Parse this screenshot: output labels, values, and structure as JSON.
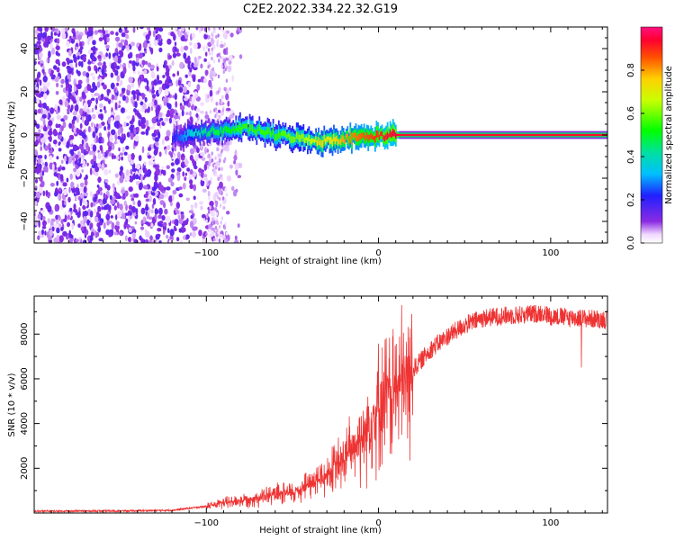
{
  "figure": {
    "title": "C2E2.2022.334.22.32.G19"
  },
  "chart_data": [
    {
      "type": "heatmap",
      "xlabel": "Height of straight line (km)",
      "ylabel": "Frequency (Hz)",
      "xlim": [
        -200,
        133
      ],
      "ylim": [
        -50,
        50
      ],
      "xticks": [
        -100,
        0,
        100
      ],
      "yticks": [
        -40,
        -20,
        0,
        20,
        40
      ],
      "grid": false,
      "colorbar": {
        "label": "Normalized spectral amplitude",
        "range": [
          0.0,
          1.0
        ],
        "ticks": [
          0.0,
          0.2,
          0.4,
          0.6,
          0.8
        ],
        "tick_labels": [
          "0.0",
          "0.2",
          "0.4",
          "0.6",
          "0.8"
        ]
      },
      "ridge": {
        "description": "spectral peak frequency vs height",
        "x": [
          -120,
          -110,
          -100,
          -90,
          -80,
          -70,
          -60,
          -50,
          -40,
          -35,
          -30,
          -20,
          -10,
          0,
          10,
          20,
          50,
          100,
          133
        ],
        "y": [
          -1.0,
          0.0,
          1.5,
          2.0,
          3.0,
          2.0,
          0.0,
          -1.0,
          -2.0,
          -3.0,
          -2.5,
          -1.5,
          -1.0,
          -0.5,
          0.0,
          0.0,
          0.0,
          0.0,
          0.0
        ],
        "amplitude": [
          0.2,
          0.35,
          0.45,
          0.5,
          0.55,
          0.55,
          0.55,
          0.6,
          0.65,
          0.75,
          0.7,
          0.8,
          0.85,
          0.9,
          0.95,
          0.95,
          0.95,
          0.95,
          0.95
        ]
      },
      "noise_region": {
        "x_range": [
          -200,
          -90
        ],
        "amplitude": [
          0.05,
          0.15
        ]
      }
    },
    {
      "type": "line",
      "xlabel": "Height of straight line (km)",
      "ylabel": "SNR (10 * v/v)",
      "xlim": [
        -200,
        133
      ],
      "ylim": [
        0,
        9700
      ],
      "xticks": [
        -100,
        0,
        100
      ],
      "yticks": [
        2000,
        4000,
        6000,
        8000
      ],
      "grid": false,
      "series": [
        {
          "color": "#ee3333",
          "x": [
            -200,
            -150,
            -120,
            -100,
            -90,
            -80,
            -70,
            -60,
            -50,
            -40,
            -30,
            -20,
            -10,
            0,
            10,
            15,
            20,
            30,
            40,
            50,
            60,
            70,
            80,
            90,
            95,
            100,
            110,
            120,
            133
          ],
          "y": [
            80,
            90,
            120,
            300,
            450,
            550,
            700,
            800,
            900,
            1300,
            1700,
            2400,
            3400,
            4800,
            5600,
            5700,
            6400,
            7300,
            7900,
            8400,
            8700,
            8800,
            8850,
            8900,
            8950,
            8800,
            8750,
            8700,
            8650
          ]
        }
      ]
    }
  ]
}
